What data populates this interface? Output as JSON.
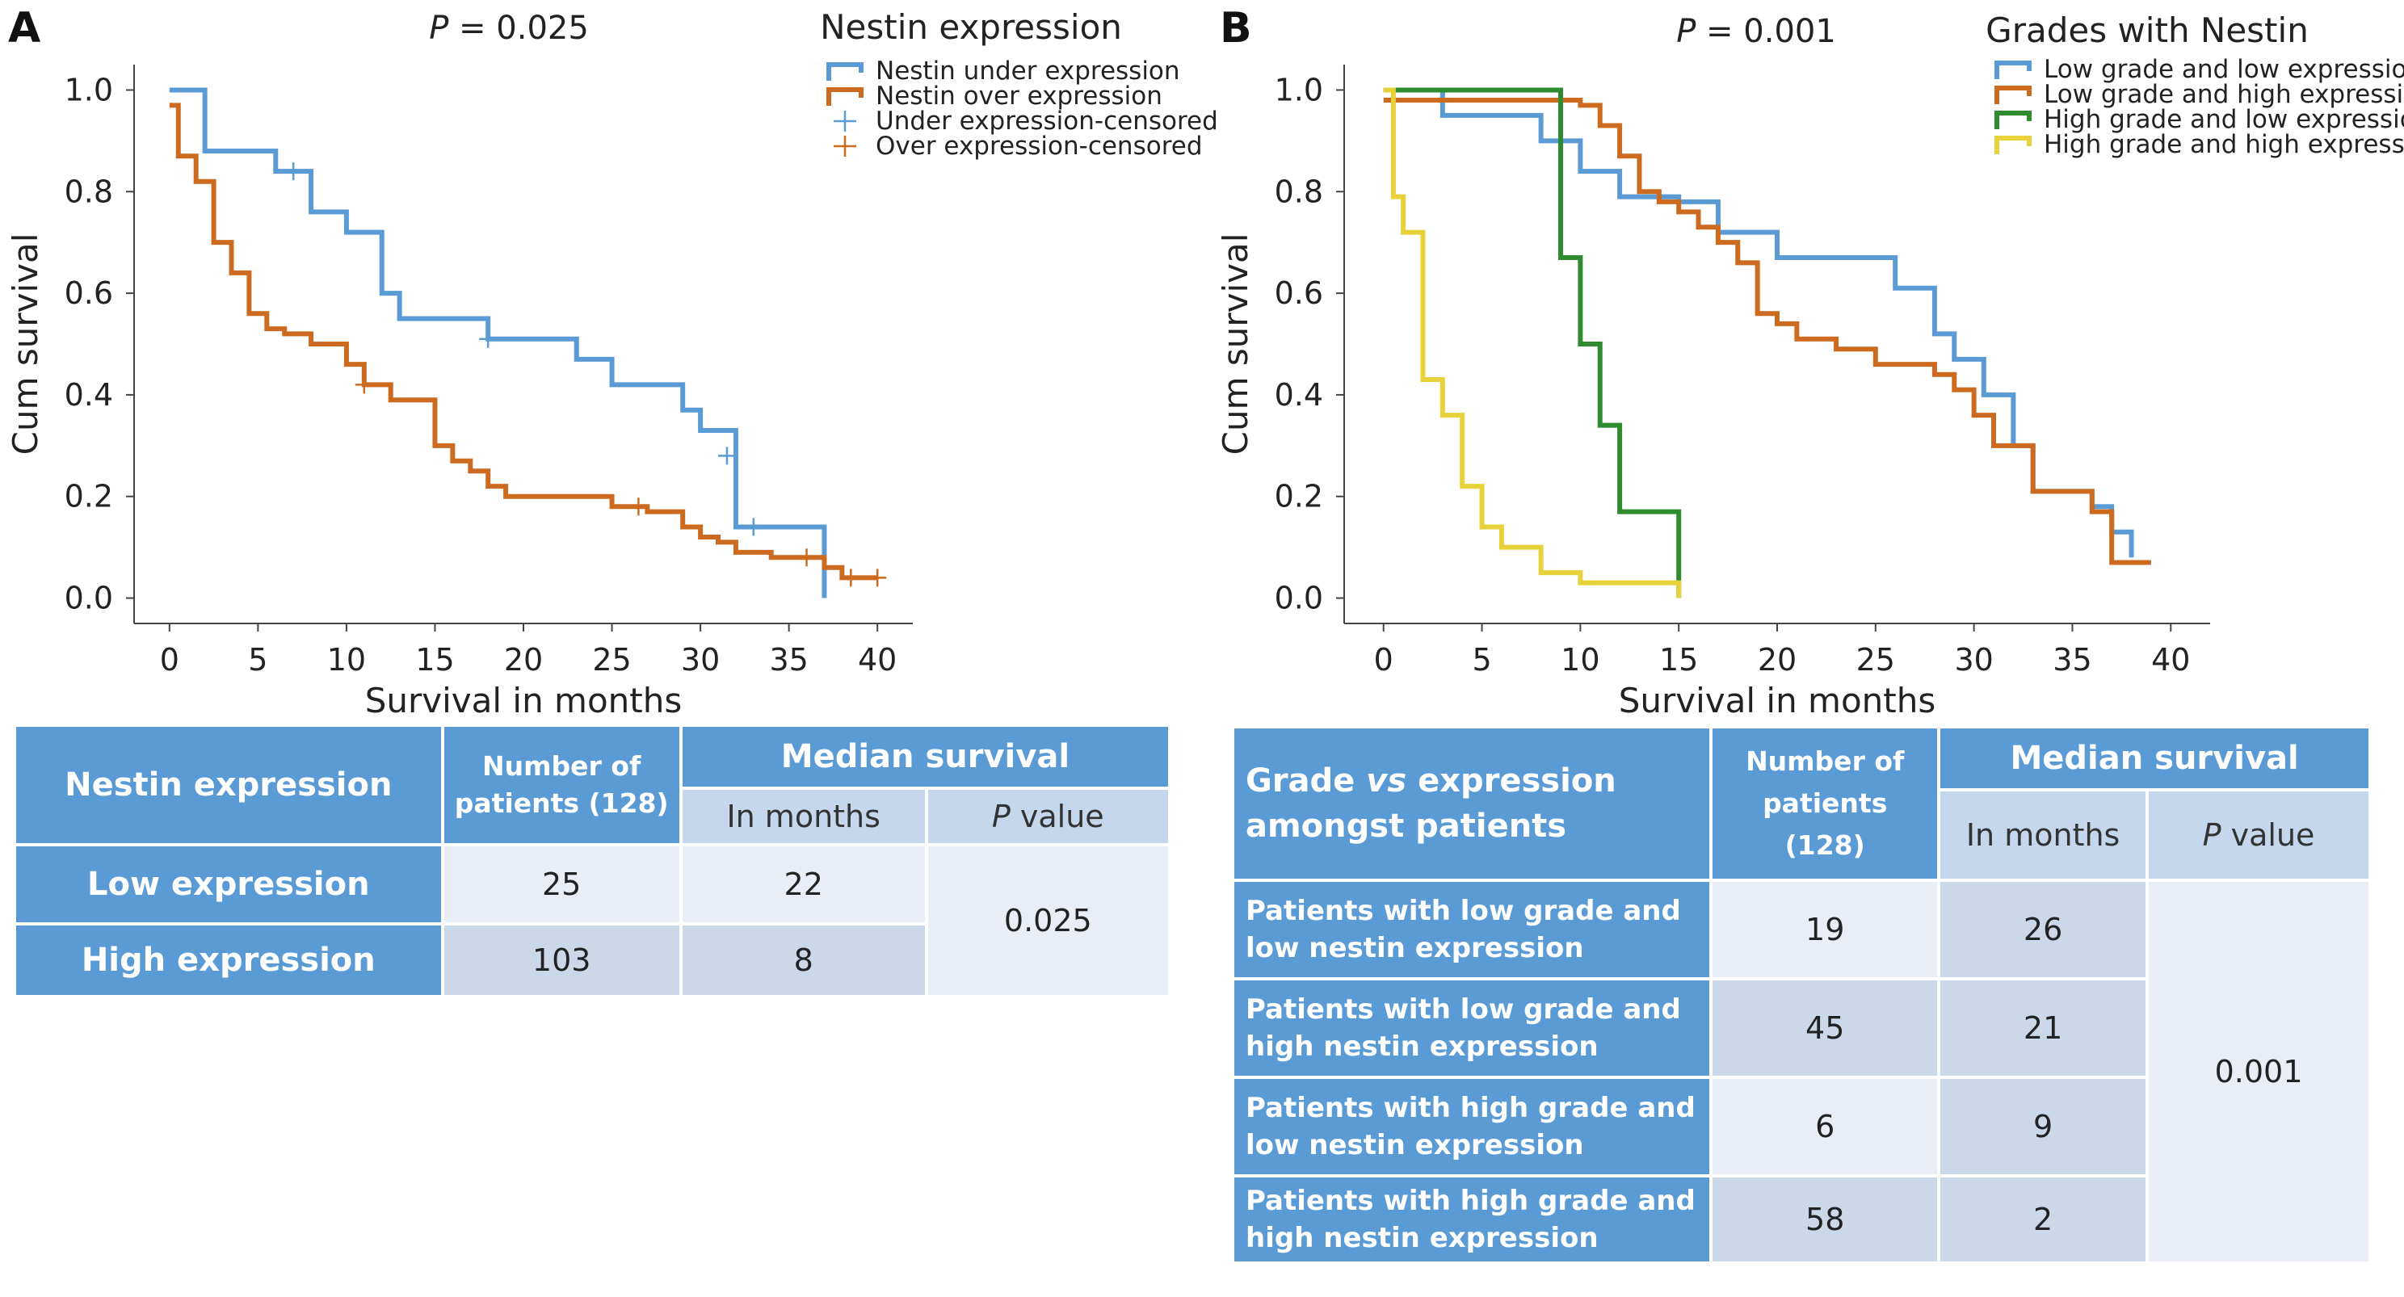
{
  "panel_a": {
    "letter": "A",
    "p_prefix": "P",
    "p_value": " = 0.025",
    "legend_title": "Nestin expression",
    "legend": [
      {
        "label": "Nestin under expression",
        "color": "#5b9bd5",
        "kind": "line"
      },
      {
        "label": "Nestin over expression",
        "color": "#cc6a1f",
        "kind": "line"
      },
      {
        "label": "Under expression-censored",
        "color": "#5b9bd5",
        "kind": "cross"
      },
      {
        "label": "Over expression-censored",
        "color": "#cc6a1f",
        "kind": "cross"
      }
    ],
    "table": {
      "h_group": "Nestin expression",
      "h_patients": "Number of patients (128)",
      "h_median": "Median survival",
      "h_months": "In months",
      "h_p_prefix": "P",
      "h_p_suffix": " value",
      "rows": [
        {
          "label": "Low expression",
          "patients": "25",
          "months": "22"
        },
        {
          "label": "High expression",
          "patients": "103",
          "months": "8"
        }
      ],
      "p_value": "0.025"
    }
  },
  "panel_b": {
    "letter": "B",
    "p_prefix": "P",
    "p_value": " = 0.001",
    "legend_title": "Grades with Nestin",
    "legend": [
      {
        "label": "Low grade and low expression",
        "color": "#5b9bd5",
        "kind": "line"
      },
      {
        "label": "Low grade and high expression",
        "color": "#cc6a1f",
        "kind": "line"
      },
      {
        "label": "High grade and low expression",
        "color": "#2e8b2e",
        "kind": "line"
      },
      {
        "label": "High grade and high expression",
        "color": "#e8d23a",
        "kind": "line"
      }
    ],
    "table": {
      "h_group_1": "Grade ",
      "h_group_vs": "vs",
      "h_group_2": " expression amongst patients",
      "h_patients": "Number of patients (128)",
      "h_median": "Median survival",
      "h_months": "In months",
      "h_p_prefix": "P",
      "h_p_suffix": " value",
      "rows": [
        {
          "label": "Patients with low grade and low nestin expression",
          "patients": "19",
          "months": "26"
        },
        {
          "label": "Patients with low grade and high nestin expression",
          "patients": "45",
          "months": "21"
        },
        {
          "label": "Patients with high grade and low nestin expression",
          "patients": "6",
          "months": "9"
        },
        {
          "label": "Patients with high grade and high nestin expression",
          "patients": "58",
          "months": "2"
        }
      ],
      "p_value": "0.001"
    }
  },
  "chart_data": [
    {
      "type": "line",
      "step": true,
      "xlabel": "Survival in months",
      "ylabel": "Cum survival",
      "xlim": [
        -2,
        42
      ],
      "ylim": [
        -0.05,
        1.05
      ],
      "xticks": [
        0,
        5,
        10,
        15,
        20,
        25,
        30,
        35,
        40
      ],
      "yticks": [
        0.0,
        0.2,
        0.4,
        0.6,
        0.8,
        1.0
      ],
      "grid": false,
      "legend_position": "top-right",
      "series": [
        {
          "name": "Nestin under expression",
          "color": "#5b9bd5",
          "x": [
            0,
            2,
            6,
            8,
            10,
            12,
            13,
            18,
            23,
            25,
            29,
            30,
            32,
            37
          ],
          "y": [
            1.0,
            0.88,
            0.84,
            0.76,
            0.72,
            0.6,
            0.55,
            0.51,
            0.47,
            0.42,
            0.37,
            0.33,
            0.14,
            0.0
          ],
          "censored": [
            [
              7,
              0.84
            ],
            [
              18,
              0.51
            ],
            [
              31.5,
              0.28
            ],
            [
              33,
              0.14
            ]
          ]
        },
        {
          "name": "Nestin over expression",
          "color": "#cc6a1f",
          "x": [
            0,
            0.5,
            1.5,
            2.5,
            3.5,
            4.5,
            5.5,
            6.5,
            8,
            10,
            11,
            12.5,
            15,
            16,
            17,
            18,
            19,
            20,
            25,
            27,
            29,
            30,
            31,
            32,
            33,
            34,
            36,
            37,
            38,
            40
          ],
          "y": [
            0.97,
            0.87,
            0.82,
            0.7,
            0.64,
            0.56,
            0.53,
            0.52,
            0.5,
            0.46,
            0.42,
            0.39,
            0.3,
            0.27,
            0.25,
            0.22,
            0.2,
            0.2,
            0.18,
            0.17,
            0.14,
            0.12,
            0.11,
            0.09,
            0.09,
            0.08,
            0.08,
            0.06,
            0.04,
            0.04
          ],
          "censored": [
            [
              11,
              0.42
            ],
            [
              26.5,
              0.18
            ],
            [
              36,
              0.08
            ],
            [
              38.5,
              0.04
            ],
            [
              40,
              0.04
            ]
          ]
        }
      ]
    },
    {
      "type": "line",
      "step": true,
      "xlabel": "Survival in months",
      "ylabel": "Cum survival",
      "xlim": [
        -2,
        42
      ],
      "ylim": [
        -0.05,
        1.05
      ],
      "xticks": [
        0,
        5,
        10,
        15,
        20,
        25,
        30,
        35,
        40
      ],
      "yticks": [
        0.0,
        0.2,
        0.4,
        0.6,
        0.8,
        1.0
      ],
      "grid": false,
      "legend_position": "top-right",
      "series": [
        {
          "name": "Low grade and low expression",
          "color": "#5b9bd5",
          "x": [
            0,
            3,
            8,
            10,
            12,
            15,
            17,
            20,
            26,
            28,
            29,
            30.5,
            32,
            33,
            36,
            37,
            38
          ],
          "y": [
            1.0,
            0.95,
            0.9,
            0.84,
            0.79,
            0.78,
            0.72,
            0.67,
            0.61,
            0.52,
            0.47,
            0.4,
            0.3,
            0.21,
            0.18,
            0.13,
            0.08
          ],
          "censored": []
        },
        {
          "name": "Low grade and high expression",
          "color": "#cc6a1f",
          "x": [
            0,
            10,
            11,
            12,
            13,
            14,
            15,
            16,
            17,
            18,
            19,
            20,
            21,
            23,
            25,
            28,
            29,
            30,
            31,
            33,
            34,
            36,
            37,
            39
          ],
          "y": [
            0.98,
            0.97,
            0.93,
            0.87,
            0.8,
            0.78,
            0.76,
            0.73,
            0.7,
            0.66,
            0.56,
            0.54,
            0.51,
            0.49,
            0.46,
            0.44,
            0.41,
            0.36,
            0.3,
            0.21,
            0.21,
            0.17,
            0.07,
            0.07
          ],
          "censored": []
        },
        {
          "name": "High grade and low expression",
          "color": "#2e8b2e",
          "x": [
            0,
            8,
            9,
            10,
            11,
            12,
            15
          ],
          "y": [
            1.0,
            1.0,
            0.67,
            0.5,
            0.34,
            0.17,
            0.0
          ],
          "censored": []
        },
        {
          "name": "High grade and high expression",
          "color": "#e8d23a",
          "x": [
            0,
            0.5,
            1,
            2,
            3,
            4,
            5,
            6,
            8,
            10,
            12,
            15
          ],
          "y": [
            1.0,
            0.79,
            0.72,
            0.43,
            0.36,
            0.22,
            0.14,
            0.1,
            0.05,
            0.03,
            0.03,
            0.0
          ],
          "censored": []
        }
      ]
    }
  ]
}
